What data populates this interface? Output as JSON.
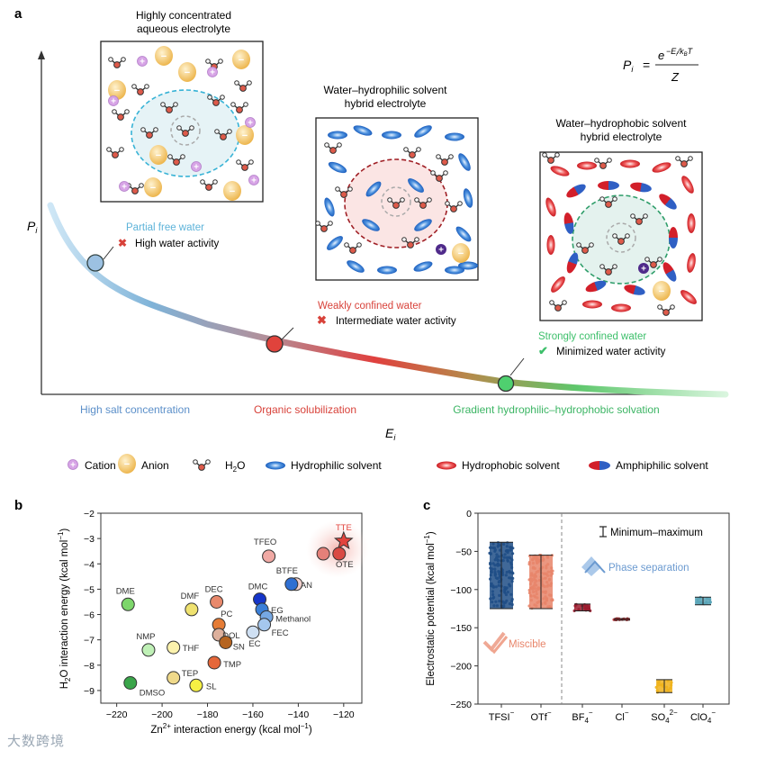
{
  "panel_labels": {
    "a": "a",
    "b": "b",
    "c": "c"
  },
  "panel_a": {
    "y_axis_label": "P",
    "y_axis_sub": "i",
    "x_axis_label": "E",
    "x_axis_sub": "i",
    "equation": {
      "lhs": "P",
      "lhs_sub": "i",
      "eq": "=",
      "numerator": "e",
      "exponent": "−E_i / k_B T",
      "exp_main": "−E",
      "exp_i": "i",
      "exp_div": "/k",
      "exp_b": "B",
      "exp_t": "T",
      "denominator": "Z"
    },
    "boxes": [
      {
        "title_line1": "Highly concentrated",
        "title_line2": "aqueous electrolyte"
      },
      {
        "title_line1": "Water–hydrophilic solvent",
        "title_line2": "hybrid electrolyte"
      },
      {
        "title_line1": "Water–hydrophobic solvent",
        "title_line2": "hybrid electrolyte"
      }
    ],
    "states": [
      {
        "name": "Partial free water",
        "activity": "High water activity",
        "mark": "✖",
        "color": "#5db3d9"
      },
      {
        "name": "Weakly confined water",
        "activity": "Intermediate water activity",
        "mark": "✖",
        "color": "#d8423a"
      },
      {
        "name": "Strongly confined water",
        "activity": "Minimized water activity",
        "mark": "✔",
        "color": "#3cbf6a"
      }
    ],
    "strategies": [
      {
        "label": "High salt concentration",
        "color": "#5b8fc9"
      },
      {
        "label": "Organic solubilization",
        "color": "#d8423a"
      },
      {
        "label": "Gradient hydrophilic–hydrophobic solvation",
        "color": "#3cb564"
      }
    ],
    "ion_signs": {
      "cation": "+",
      "anion": "−"
    },
    "legend": [
      {
        "key": "cation",
        "label": "Cation"
      },
      {
        "key": "anion",
        "label": "Anion"
      },
      {
        "key": "h2o",
        "label": "H",
        "sub": "2",
        "tail": "O"
      },
      {
        "key": "hydrophilic",
        "label": "Hydrophilic solvent"
      },
      {
        "key": "hydrophobic",
        "label": "Hydrophobic solvent"
      },
      {
        "key": "amphiphilic",
        "label": "Amphiphilic solvent"
      }
    ]
  },
  "chart_data": [
    {
      "type": "scatter",
      "panel": "b",
      "xlabel": "Zn2+ interaction energy (kcal mol−1)",
      "ylabel": "H2O interaction energy (kcal mol−1)",
      "xlim": [
        -227,
        -112
      ],
      "ylim": [
        -9.5,
        -2
      ],
      "x_ticks": [
        -220,
        -200,
        -180,
        -160,
        -140,
        -120
      ],
      "y_ticks": [
        -2,
        -3,
        -4,
        -5,
        -6,
        -7,
        -8,
        -9
      ],
      "points": [
        {
          "label": "TTE",
          "x": -120,
          "y": -3.1,
          "color": "#e2443d",
          "marker": "star"
        },
        {
          "label": "OTE",
          "x": -122,
          "y": -3.6,
          "color": "#d94a44"
        },
        {
          "label": "",
          "x": -129,
          "y": -3.6,
          "color": "#e48079"
        },
        {
          "label": "TFEO",
          "x": -153,
          "y": -3.7,
          "color": "#f0a9a4"
        },
        {
          "label": "BTFE",
          "x": -141,
          "y": -4.8,
          "color": "#f0d0cd"
        },
        {
          "label": "AN",
          "x": -143,
          "y": -4.8,
          "color": "#2f6fd2"
        },
        {
          "label": "DMC",
          "x": -157,
          "y": -5.4,
          "color": "#1535c9"
        },
        {
          "label": "EG",
          "x": -156,
          "y": -5.8,
          "color": "#3a7fd8"
        },
        {
          "label": "Methanol",
          "x": -154,
          "y": -6.1,
          "color": "#76a8e3"
        },
        {
          "label": "FEC",
          "x": -155,
          "y": -6.4,
          "color": "#a5c7ee"
        },
        {
          "label": "EC",
          "x": -160,
          "y": -6.7,
          "color": "#cfe0f3"
        },
        {
          "label": "DEC",
          "x": -176,
          "y": -5.5,
          "color": "#e8896c"
        },
        {
          "label": "PC",
          "x": -175,
          "y": -6.4,
          "color": "#e57c36"
        },
        {
          "label": "DOL",
          "x": -175,
          "y": -6.8,
          "color": "#ddb09c"
        },
        {
          "label": "SN",
          "x": -172,
          "y": -7.1,
          "color": "#b56420"
        },
        {
          "label": "TMP",
          "x": -177,
          "y": -7.9,
          "color": "#e5673a"
        },
        {
          "label": "DMF",
          "x": -187,
          "y": -5.8,
          "color": "#efe270"
        },
        {
          "label": "THF",
          "x": -195,
          "y": -7.3,
          "color": "#fbf2ad"
        },
        {
          "label": "TEP",
          "x": -195,
          "y": -8.5,
          "color": "#efd98a"
        },
        {
          "label": "SL",
          "x": -185,
          "y": -8.8,
          "color": "#f6f044"
        },
        {
          "label": "DME",
          "x": -215,
          "y": -5.6,
          "color": "#7dd66b"
        },
        {
          "label": "NMP",
          "x": -206,
          "y": -7.4,
          "color": "#bff0b6"
        },
        {
          "label": "DMSO",
          "x": -214,
          "y": -8.7,
          "color": "#3aa54a"
        }
      ],
      "annotation_labels": []
    },
    {
      "type": "box",
      "panel": "c",
      "ylabel": "Electrostatic potential (kcal mol−1)",
      "ylim": [
        -250,
        0
      ],
      "y_ticks": [
        0,
        -50,
        -100,
        -150,
        -200,
        -250
      ],
      "categories": [
        {
          "name": "TFSI",
          "sup": "−",
          "min": -125,
          "max": -38,
          "color": "#1f4e86"
        },
        {
          "name": "OTf",
          "sup": "−",
          "min": -125,
          "max": -55,
          "color": "#e8856a"
        },
        {
          "name": "BF",
          "sub": "4",
          "sup": "−",
          "min": -128,
          "max": -119,
          "color": "#9b1b2d"
        },
        {
          "name": "Cl",
          "sup": "−",
          "min": -140,
          "max": -138,
          "color": "#b3282d"
        },
        {
          "name": "SO",
          "sub": "4",
          "sup": "2−",
          "min": -235,
          "max": -218,
          "color": "#f0b21b"
        },
        {
          "name": "ClO",
          "sub": "4",
          "sup": "−",
          "min": -120,
          "max": -110,
          "color": "#5aa5b8"
        }
      ],
      "legend_range_label": "Minimum–maximum",
      "annotations": [
        {
          "label": "Miscible",
          "color": "#e8856a"
        },
        {
          "label": "Phase separation",
          "color": "#6b9ad0"
        }
      ]
    }
  ],
  "watermark": "大数跨境"
}
